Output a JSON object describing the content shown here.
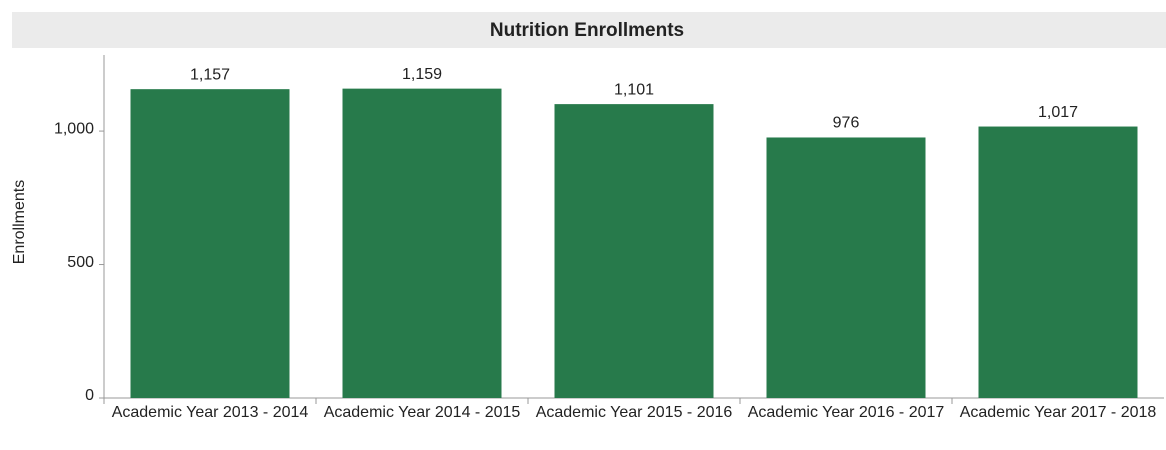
{
  "chart_data": {
    "type": "bar",
    "title": "Nutrition Enrollments",
    "y_label": "Enrollments",
    "categories": [
      "Academic Year 2013 - 2014",
      "Academic Year 2014 - 2015",
      "Academic Year 2015 - 2016",
      "Academic Year 2016 - 2017",
      "Academic Year 2017 - 2018"
    ],
    "values": [
      1157,
      1159,
      1101,
      976,
      1017
    ],
    "value_labels": [
      "1,157",
      "1,159",
      "1,101",
      "976",
      "1,017"
    ],
    "color": "#277a4b",
    "ylim": [
      0,
      1285
    ],
    "yticks": [
      0,
      500,
      {
        "value": 1000,
        "label": "1,000"
      }
    ],
    "grid": false
  }
}
